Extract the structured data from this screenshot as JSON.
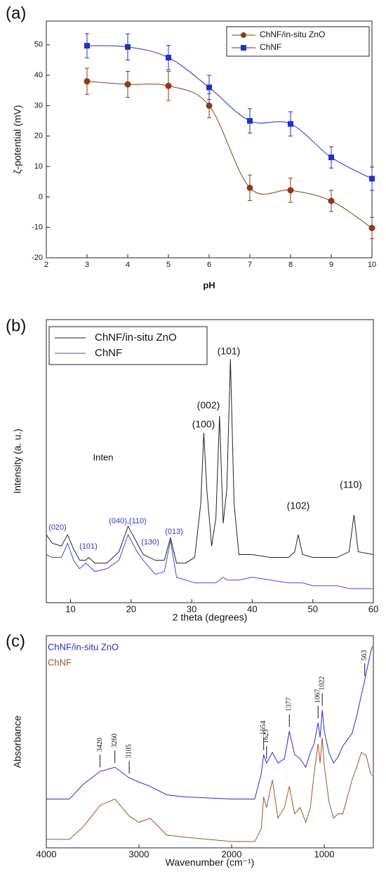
{
  "chart_data": [
    {
      "type": "line",
      "label": "(a)",
      "x_label": "pH",
      "y_label": "ζ-potential (mV)",
      "x": [
        3,
        4,
        5,
        6,
        7,
        8,
        9,
        10
      ],
      "xlim": [
        2,
        10
      ],
      "xticks": [
        2,
        3,
        4,
        5,
        6,
        7,
        8,
        9,
        10
      ],
      "ylim": [
        -20,
        57.8
      ],
      "yticks": [
        -20,
        -10,
        0,
        10,
        20,
        30,
        40,
        50
      ],
      "smooth": true,
      "legend": "top-right",
      "series": [
        {
          "name": "ChNF/in-situ ZnO",
          "color": "#8b3a1a",
          "marker": "circle",
          "values": [
            38,
            37,
            36.5,
            30,
            3,
            2.2,
            -1.3,
            -10.2
          ],
          "errors": [
            4.3,
            4.3,
            4.8,
            4,
            4.2,
            4,
            3.5,
            3.5
          ]
        },
        {
          "name": "ChNF",
          "color": "#1f2fd0",
          "marker": "square",
          "values": [
            49.7,
            49.3,
            45.8,
            36,
            25,
            24,
            13,
            6
          ],
          "errors": [
            4,
            4.3,
            4,
            4,
            4,
            4,
            3.5,
            3.8
          ]
        }
      ]
    },
    {
      "type": "line",
      "label": "(b)",
      "x_label": "2 theta (degrees)",
      "y_label": "Intensity (a. u.)",
      "x": [
        6,
        7,
        8.5,
        9.5,
        10.5,
        11.5,
        12.5,
        13,
        14,
        16,
        18,
        19.5,
        21,
        22,
        24,
        25.5,
        26.5,
        27.5,
        29,
        30.5,
        31.5,
        32,
        32.5,
        33.3,
        34,
        34.6,
        35.2,
        35.8,
        36.4,
        37,
        37.8,
        40,
        43,
        46,
        47,
        47.6,
        48.3,
        50,
        54,
        56,
        56.8,
        57.5,
        60
      ],
      "xlim": [
        6,
        60
      ],
      "xticks": [
        10,
        20,
        30,
        40,
        50,
        60
      ],
      "ylim": [
        0,
        100
      ],
      "smooth": false,
      "legend": "top-left",
      "series": [
        {
          "name": "ChNF/in-situ ZnO",
          "color": "#222222",
          "values": [
            24,
            21,
            20,
            24,
            19,
            15,
            15,
            16,
            14,
            14,
            18,
            27,
            21,
            17,
            15,
            15,
            23,
            14,
            14,
            16,
            35,
            60,
            40,
            20,
            30,
            66,
            28,
            40,
            86,
            35,
            17,
            17,
            16,
            16,
            18,
            24,
            17,
            16,
            16,
            18,
            31,
            18,
            17
          ]
        },
        {
          "name": "ChNF",
          "color": "#4545e0",
          "values": [
            17,
            16,
            16,
            21,
            15,
            12,
            14,
            13,
            11,
            12,
            15,
            24,
            18,
            15,
            10,
            11,
            22,
            9,
            8,
            7,
            7,
            7,
            7,
            7,
            7,
            8,
            9,
            8,
            8,
            8,
            8,
            9,
            8,
            7,
            7,
            7,
            7,
            6,
            6,
            5,
            5,
            5,
            5
          ]
        }
      ],
      "annotations": [
        {
          "text": "(020)",
          "color": "#3333cc"
        },
        {
          "text": "(101)",
          "color": "#3333cc"
        },
        {
          "text": "(040),(110)",
          "color": "#3333cc"
        },
        {
          "text": "(130)",
          "color": "#3333cc"
        },
        {
          "text": "(013)",
          "color": "#3333cc"
        },
        {
          "text": "(100)",
          "color": "#111111"
        },
        {
          "text": "(002)",
          "color": "#111111"
        },
        {
          "text": "(101)",
          "color": "#111111"
        },
        {
          "text": "(102)",
          "color": "#111111"
        },
        {
          "text": "(110)",
          "color": "#111111"
        },
        {
          "text": "Inten",
          "color": "#111111"
        }
      ]
    },
    {
      "type": "line",
      "label": "(c)",
      "x_label": "Wavenumber (cm⁻¹)",
      "y_label": "Absorbance",
      "x": [
        4000,
        3750,
        3600,
        3420,
        3260,
        3105,
        3000,
        2880,
        2700,
        2500,
        2000,
        1750,
        1680,
        1654,
        1623,
        1560,
        1500,
        1430,
        1377,
        1320,
        1260,
        1200,
        1150,
        1110,
        1067,
        1045,
        1022,
        1000,
        950,
        900,
        850,
        800,
        700,
        650,
        600,
        563,
        550,
        500,
        480
      ],
      "xlim": [
        4000,
        470
      ],
      "xticks": [
        4000,
        3000,
        2000,
        1000
      ],
      "ylim": [
        0,
        100
      ],
      "smooth": false,
      "legend": "top-left",
      "series": [
        {
          "name": "ChNF/in-situ ZnO",
          "color": "#2a2acc",
          "values": [
            23,
            23,
            30,
            36,
            38,
            33,
            31,
            29,
            25,
            24,
            23,
            23,
            35,
            44,
            40,
            45,
            40,
            42,
            55,
            44,
            42,
            38,
            45,
            49,
            59,
            52,
            65,
            55,
            45,
            40,
            43,
            48,
            54,
            62,
            72,
            79,
            82,
            92,
            95
          ]
        },
        {
          "name": "ChNF",
          "color": "#a0522d",
          "values": [
            4,
            4,
            10,
            20,
            23,
            15,
            12,
            14,
            6,
            5,
            3,
            3,
            9,
            24,
            19,
            32,
            14,
            19,
            29,
            16,
            19,
            12,
            19,
            35,
            49,
            40,
            52,
            39,
            22,
            14,
            16,
            16,
            32,
            38,
            45,
            44,
            44,
            35,
            34
          ]
        }
      ],
      "peaks": [
        3420,
        3260,
        3105,
        1654,
        1623,
        1377,
        1067,
        1022,
        563
      ]
    }
  ]
}
